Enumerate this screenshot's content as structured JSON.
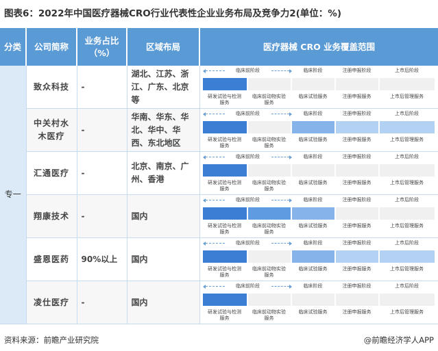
{
  "title": "图表6：2022年中国医疗器械CRO行业代表性企业业务布局及竞争力2(单位：%)",
  "headers": {
    "category": "分类",
    "company": "公司简称",
    "share": "业务占比（%）",
    "region": "区域布局",
    "coverage": "医疗器械 CRO 业务覆盖范围"
  },
  "category_value": "专一",
  "phase_labels": {
    "top_preclinical": "临床前阶段",
    "top_clinical": "临床阶段",
    "top_registration": "注册申报阶段",
    "top_postmarket": "上市后阶段",
    "bot_dev": "研发试验与检测服务",
    "bot_preclinical": "临床前动物实验服务",
    "bot_clinical": "临床试验服务",
    "bot_registration": "注册申报服务",
    "bot_postmarket": "上市后管理服务"
  },
  "rows": [
    {
      "company": "致众科技",
      "share": "-",
      "region": "湖北、江苏、浙江、广东、北京等",
      "filled": [
        true,
        false,
        false,
        false,
        false
      ]
    },
    {
      "company": "中关村水木医疗",
      "share": "-",
      "region": "华南、华东、华北、华中、华西、东北地区",
      "filled": [
        true,
        false,
        true,
        true,
        true
      ]
    },
    {
      "company": "汇通医疗",
      "share": "-",
      "region": "北京、南京、广州、香港",
      "filled": [
        true,
        false,
        false,
        false,
        false
      ]
    },
    {
      "company": "翔康技术",
      "share": "-",
      "region": "国内",
      "filled": [
        true,
        true,
        true,
        false,
        false
      ]
    },
    {
      "company": "盛恩医药",
      "share": "90%以上",
      "region": "国内",
      "filled": [
        true,
        false,
        true,
        true,
        true
      ]
    },
    {
      "company": "凌仕医疗",
      "share": "-",
      "region": "国内",
      "filled": [
        true,
        false,
        false,
        false,
        false
      ]
    }
  ],
  "colors": {
    "header": "#5b9bd5",
    "seg1": "#3a7fd4",
    "seg2": "#5f9be0",
    "seg3": "#86b4ea",
    "seg4": "#b3d1f3",
    "empty": "#f0f0f0"
  },
  "footer": {
    "source": "资料来源：前瞻产业研究院",
    "brand": "@前瞻经济学人APP"
  }
}
